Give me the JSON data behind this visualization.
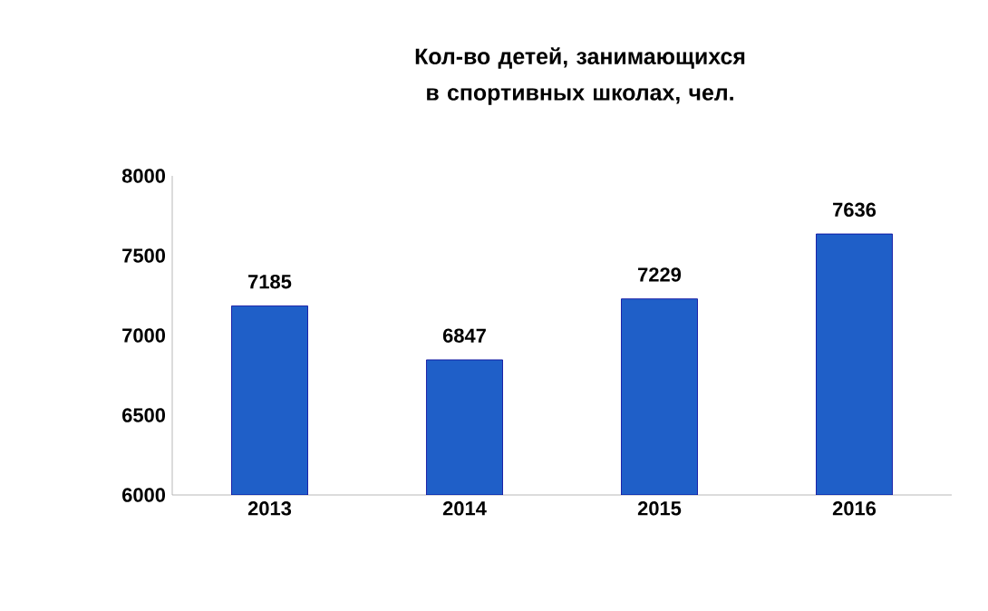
{
  "chart_data": {
    "type": "bar",
    "title": "Кол-во детей, занимающихся в спортивных школах, чел.",
    "categories": [
      "2013",
      "2014",
      "2015",
      "2016"
    ],
    "values": [
      7185,
      6847,
      7229,
      7636
    ],
    "color": "#1f5fc8",
    "ylim": [
      6000,
      8000
    ],
    "yticks": [
      6000,
      6500,
      7000,
      7500,
      8000
    ],
    "data_labels": true
  }
}
